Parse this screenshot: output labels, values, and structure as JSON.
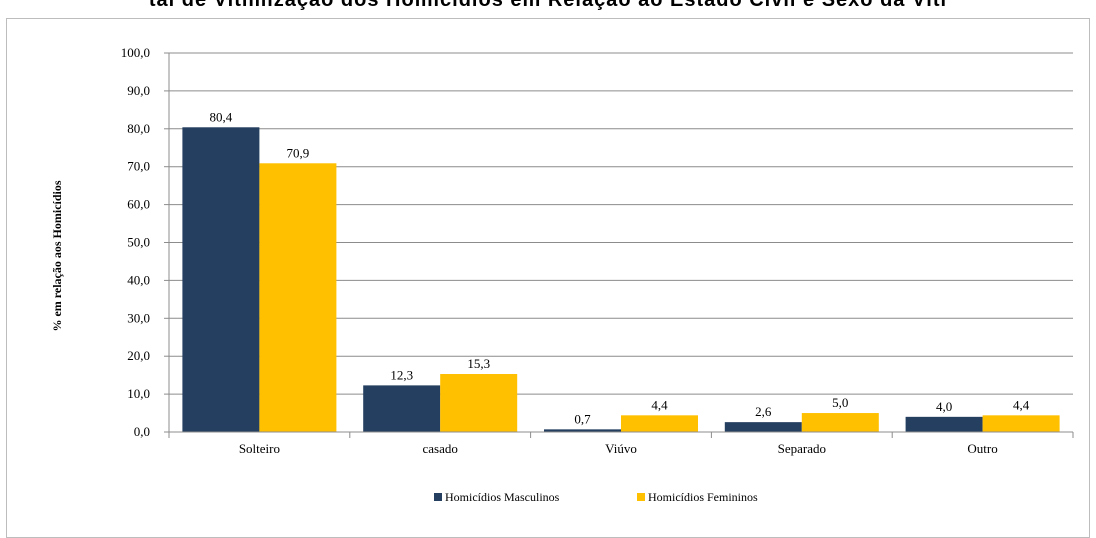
{
  "page_title": "tal de Vitimização dos Homicídios em Relação ao Estado Civil e Sexo da Víti",
  "chart_data": {
    "type": "bar",
    "categories": [
      "Solteiro",
      "casado",
      "Viúvo",
      "Separado",
      "Outro"
    ],
    "series": [
      {
        "name": "Homicídios Masculinos",
        "color": "#243F60",
        "values": [
          80.4,
          12.3,
          0.7,
          2.6,
          4.0
        ],
        "labels": [
          "80,4",
          "12,3",
          "0,7",
          "2,6",
          "4,0"
        ]
      },
      {
        "name": "Homicídios Femininos",
        "color": "#FFC000",
        "values": [
          70.9,
          15.3,
          4.4,
          5.0,
          4.4
        ],
        "labels": [
          "70,9",
          "15,3",
          "4,4",
          "5,0",
          "4,4"
        ]
      }
    ],
    "ylabel": "% em relação aos Homicídios",
    "xlabel": "",
    "ylim": [
      0,
      100
    ],
    "yticks": [
      0,
      10,
      20,
      30,
      40,
      50,
      60,
      70,
      80,
      90,
      100
    ],
    "ytick_labels": [
      "0,0",
      "10,0",
      "20,0",
      "30,0",
      "40,0",
      "50,0",
      "60,0",
      "70,0",
      "80,0",
      "90,0",
      "100,0"
    ],
    "grid": true,
    "legend_position": "bottom-center"
  }
}
